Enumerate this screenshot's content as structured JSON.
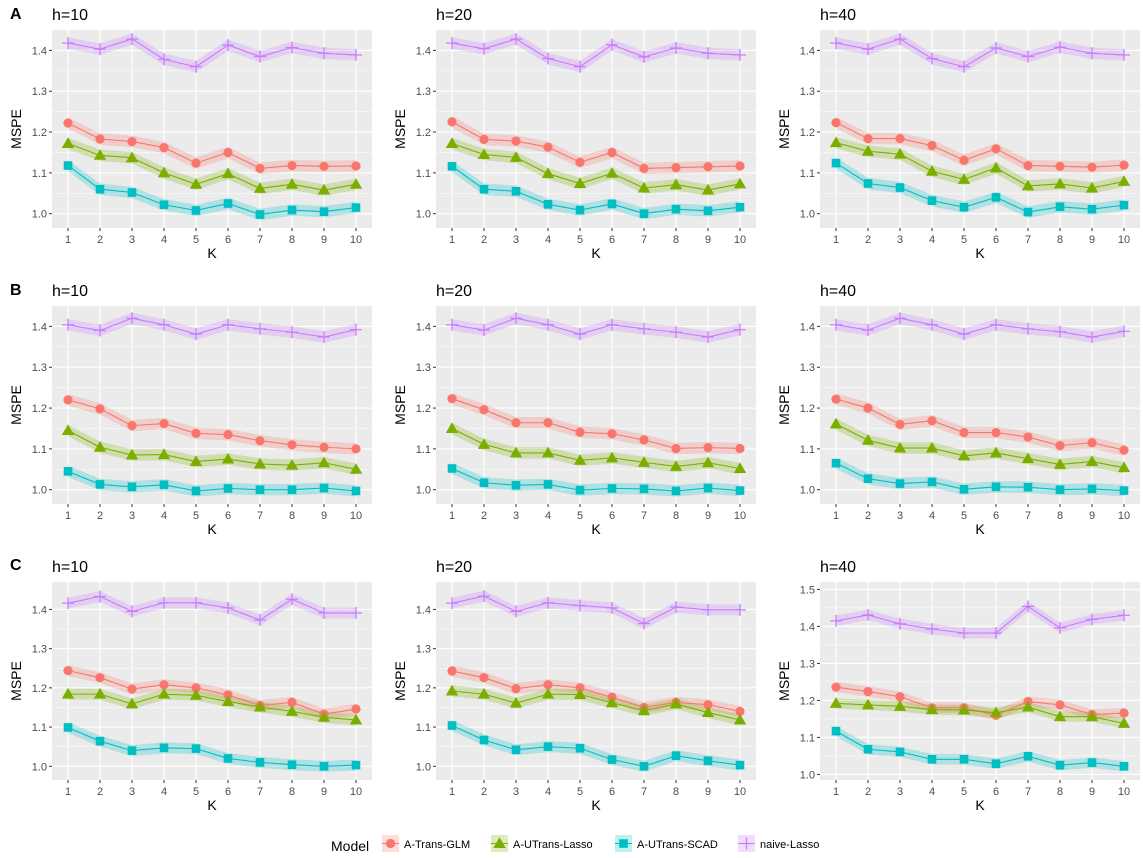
{
  "legend": {
    "title": "Model",
    "entries": [
      {
        "name": "A-Trans-GLM",
        "color": "#F8766D",
        "shape": "circle"
      },
      {
        "name": "A-UTrans-Lasso",
        "color": "#7CAE00",
        "shape": "triangle"
      },
      {
        "name": "A-UTrans-SCAD",
        "color": "#00BFC4",
        "shape": "square"
      },
      {
        "name": "naive-Lasso",
        "color": "#C77CFF",
        "shape": "plus"
      }
    ]
  },
  "row_labels": [
    "A",
    "B",
    "C"
  ],
  "colors": {
    "panel_bg": "#EBEBEB",
    "grid": "#FFFFFF"
  },
  "chart_data": [
    {
      "type": "line",
      "row": "A",
      "title": "h=10",
      "xlabel": "K",
      "ylabel": "MSPE",
      "x": [
        1,
        2,
        3,
        4,
        5,
        6,
        7,
        8,
        9,
        10
      ],
      "ylim": [
        0.965,
        1.45
      ],
      "yticks": [
        1.0,
        1.1,
        1.2,
        1.3,
        1.4
      ],
      "series": [
        {
          "name": "A-Trans-GLM",
          "values": [
            1.222,
            1.183,
            1.177,
            1.162,
            1.124,
            1.15,
            1.111,
            1.118,
            1.116,
            1.117
          ]
        },
        {
          "name": "A-UTrans-Lasso",
          "values": [
            1.172,
            1.143,
            1.137,
            1.1,
            1.072,
            1.098,
            1.062,
            1.072,
            1.058,
            1.072
          ]
        },
        {
          "name": "A-UTrans-SCAD",
          "values": [
            1.118,
            1.06,
            1.052,
            1.022,
            1.008,
            1.025,
            0.998,
            1.009,
            1.005,
            1.015
          ]
        },
        {
          "name": "naive-Lasso",
          "values": [
            1.418,
            1.403,
            1.428,
            1.378,
            1.36,
            1.413,
            1.385,
            1.407,
            1.393,
            1.389
          ]
        }
      ]
    },
    {
      "type": "line",
      "row": "A",
      "title": "h=20",
      "xlabel": "K",
      "ylabel": "MSPE",
      "x": [
        1,
        2,
        3,
        4,
        5,
        6,
        7,
        8,
        9,
        10
      ],
      "ylim": [
        0.965,
        1.45
      ],
      "yticks": [
        1.0,
        1.1,
        1.2,
        1.3,
        1.4
      ],
      "series": [
        {
          "name": "A-Trans-GLM",
          "values": [
            1.225,
            1.182,
            1.178,
            1.163,
            1.126,
            1.15,
            1.111,
            1.113,
            1.115,
            1.117
          ]
        },
        {
          "name": "A-UTrans-Lasso",
          "values": [
            1.172,
            1.145,
            1.138,
            1.098,
            1.074,
            1.099,
            1.063,
            1.071,
            1.058,
            1.073
          ]
        },
        {
          "name": "A-UTrans-SCAD",
          "values": [
            1.116,
            1.06,
            1.055,
            1.023,
            1.009,
            1.024,
            1.0,
            1.011,
            1.007,
            1.016
          ]
        },
        {
          "name": "naive-Lasso",
          "values": [
            1.418,
            1.404,
            1.428,
            1.38,
            1.36,
            1.414,
            1.384,
            1.406,
            1.393,
            1.389
          ]
        }
      ]
    },
    {
      "type": "line",
      "row": "A",
      "title": "h=40",
      "xlabel": "K",
      "ylabel": "MSPE",
      "x": [
        1,
        2,
        3,
        4,
        5,
        6,
        7,
        8,
        9,
        10
      ],
      "ylim": [
        0.965,
        1.45
      ],
      "yticks": [
        1.0,
        1.1,
        1.2,
        1.3,
        1.4
      ],
      "series": [
        {
          "name": "A-Trans-GLM",
          "values": [
            1.223,
            1.184,
            1.184,
            1.167,
            1.131,
            1.159,
            1.118,
            1.116,
            1.114,
            1.119
          ]
        },
        {
          "name": "A-UTrans-Lasso",
          "values": [
            1.174,
            1.153,
            1.146,
            1.104,
            1.084,
            1.112,
            1.068,
            1.073,
            1.063,
            1.079
          ]
        },
        {
          "name": "A-UTrans-SCAD",
          "values": [
            1.124,
            1.074,
            1.064,
            1.032,
            1.016,
            1.04,
            1.004,
            1.017,
            1.011,
            1.021
          ]
        },
        {
          "name": "naive-Lasso",
          "values": [
            1.418,
            1.403,
            1.428,
            1.38,
            1.36,
            1.406,
            1.385,
            1.408,
            1.393,
            1.389
          ]
        }
      ]
    },
    {
      "type": "line",
      "row": "B",
      "title": "h=10",
      "xlabel": "K",
      "ylabel": "MSPE",
      "x": [
        1,
        2,
        3,
        4,
        5,
        6,
        7,
        8,
        9,
        10
      ],
      "ylim": [
        0.965,
        1.45
      ],
      "yticks": [
        1.0,
        1.1,
        1.2,
        1.3,
        1.4
      ],
      "series": [
        {
          "name": "A-Trans-GLM",
          "values": [
            1.22,
            1.198,
            1.157,
            1.162,
            1.138,
            1.135,
            1.12,
            1.11,
            1.104,
            1.1
          ]
        },
        {
          "name": "A-UTrans-Lasso",
          "values": [
            1.145,
            1.104,
            1.085,
            1.086,
            1.069,
            1.075,
            1.063,
            1.06,
            1.066,
            1.05
          ]
        },
        {
          "name": "A-UTrans-SCAD",
          "values": [
            1.045,
            1.013,
            1.007,
            1.012,
            0.997,
            1.003,
            1.0,
            1.0,
            1.004,
            0.997
          ]
        },
        {
          "name": "naive-Lasso",
          "values": [
            1.404,
            1.39,
            1.42,
            1.404,
            1.381,
            1.404,
            1.394,
            1.386,
            1.374,
            1.392
          ]
        }
      ]
    },
    {
      "type": "line",
      "row": "B",
      "title": "h=20",
      "xlabel": "K",
      "ylabel": "MSPE",
      "x": [
        1,
        2,
        3,
        4,
        5,
        6,
        7,
        8,
        9,
        10
      ],
      "ylim": [
        0.965,
        1.45
      ],
      "yticks": [
        1.0,
        1.1,
        1.2,
        1.3,
        1.4
      ],
      "series": [
        {
          "name": "A-Trans-GLM",
          "values": [
            1.223,
            1.196,
            1.164,
            1.164,
            1.141,
            1.137,
            1.122,
            1.101,
            1.103,
            1.101
          ]
        },
        {
          "name": "A-UTrans-Lasso",
          "values": [
            1.15,
            1.111,
            1.09,
            1.09,
            1.072,
            1.078,
            1.067,
            1.057,
            1.066,
            1.052
          ]
        },
        {
          "name": "A-UTrans-SCAD",
          "values": [
            1.052,
            1.017,
            1.011,
            1.013,
            0.999,
            1.003,
            1.002,
            0.997,
            1.004,
            0.998
          ]
        },
        {
          "name": "naive-Lasso",
          "values": [
            1.404,
            1.391,
            1.42,
            1.404,
            1.381,
            1.404,
            1.394,
            1.386,
            1.374,
            1.392
          ]
        }
      ]
    },
    {
      "type": "line",
      "row": "B",
      "title": "h=40",
      "xlabel": "K",
      "ylabel": "MSPE",
      "x": [
        1,
        2,
        3,
        4,
        5,
        6,
        7,
        8,
        9,
        10
      ],
      "ylim": [
        0.965,
        1.45
      ],
      "yticks": [
        1.0,
        1.1,
        1.2,
        1.3,
        1.4
      ],
      "series": [
        {
          "name": "A-Trans-GLM",
          "values": [
            1.222,
            1.2,
            1.16,
            1.169,
            1.14,
            1.14,
            1.129,
            1.108,
            1.115,
            1.097
          ]
        },
        {
          "name": "A-UTrans-Lasso",
          "values": [
            1.161,
            1.121,
            1.102,
            1.102,
            1.083,
            1.09,
            1.076,
            1.062,
            1.069,
            1.054
          ]
        },
        {
          "name": "A-UTrans-SCAD",
          "values": [
            1.065,
            1.027,
            1.015,
            1.019,
            1.001,
            1.007,
            1.006,
            1.0,
            1.002,
            0.998
          ]
        },
        {
          "name": "naive-Lasso",
          "values": [
            1.404,
            1.391,
            1.42,
            1.404,
            1.381,
            1.404,
            1.394,
            1.387,
            1.374,
            1.388
          ]
        }
      ]
    },
    {
      "type": "line",
      "row": "C",
      "title": "h=10",
      "xlabel": "K",
      "ylabel": "MSPE",
      "x": [
        1,
        2,
        3,
        4,
        5,
        6,
        7,
        8,
        9,
        10
      ],
      "ylim": [
        0.965,
        1.47
      ],
      "yticks": [
        1.0,
        1.1,
        1.2,
        1.3,
        1.4
      ],
      "series": [
        {
          "name": "A-Trans-GLM",
          "values": [
            1.244,
            1.226,
            1.197,
            1.208,
            1.2,
            1.182,
            1.155,
            1.163,
            1.133,
            1.146
          ]
        },
        {
          "name": "A-UTrans-Lasso",
          "values": [
            1.184,
            1.184,
            1.159,
            1.184,
            1.181,
            1.165,
            1.151,
            1.14,
            1.125,
            1.118
          ]
        },
        {
          "name": "A-UTrans-SCAD",
          "values": [
            1.099,
            1.064,
            1.04,
            1.047,
            1.045,
            1.02,
            1.01,
            1.004,
            1.0,
            1.003
          ]
        },
        {
          "name": "naive-Lasso",
          "values": [
            1.416,
            1.433,
            1.395,
            1.417,
            1.417,
            1.404,
            1.373,
            1.426,
            1.391,
            1.391
          ]
        }
      ]
    },
    {
      "type": "line",
      "row": "C",
      "title": "h=20",
      "xlabel": "K",
      "ylabel": "MSPE",
      "x": [
        1,
        2,
        3,
        4,
        5,
        6,
        7,
        8,
        9,
        10
      ],
      "ylim": [
        0.965,
        1.47
      ],
      "yticks": [
        1.0,
        1.1,
        1.2,
        1.3,
        1.4
      ],
      "series": [
        {
          "name": "A-Trans-GLM",
          "values": [
            1.243,
            1.226,
            1.198,
            1.208,
            1.2,
            1.176,
            1.15,
            1.163,
            1.157,
            1.14
          ]
        },
        {
          "name": "A-UTrans-Lasso",
          "values": [
            1.192,
            1.184,
            1.161,
            1.184,
            1.183,
            1.162,
            1.142,
            1.159,
            1.137,
            1.118
          ]
        },
        {
          "name": "A-UTrans-SCAD",
          "values": [
            1.104,
            1.067,
            1.042,
            1.05,
            1.046,
            1.017,
            1.0,
            1.027,
            1.014,
            1.003
          ]
        },
        {
          "name": "naive-Lasso",
          "values": [
            1.416,
            1.434,
            1.395,
            1.417,
            1.41,
            1.404,
            1.364,
            1.406,
            1.399,
            1.399
          ]
        }
      ]
    },
    {
      "type": "line",
      "row": "C",
      "title": "h=40",
      "xlabel": "K",
      "ylabel": "MSPE",
      "x": [
        1,
        2,
        3,
        4,
        5,
        6,
        7,
        8,
        9,
        10
      ],
      "ylim": [
        0.985,
        1.52
      ],
      "yticks": [
        1.0,
        1.1,
        1.2,
        1.3,
        1.4,
        1.5
      ],
      "series": [
        {
          "name": "A-Trans-GLM",
          "values": [
            1.236,
            1.224,
            1.21,
            1.18,
            1.18,
            1.16,
            1.197,
            1.188,
            1.162,
            1.166
          ]
        },
        {
          "name": "A-UTrans-Lasso",
          "values": [
            1.192,
            1.188,
            1.184,
            1.175,
            1.174,
            1.167,
            1.182,
            1.156,
            1.156,
            1.138
          ]
        },
        {
          "name": "A-UTrans-SCAD",
          "values": [
            1.117,
            1.068,
            1.061,
            1.041,
            1.041,
            1.029,
            1.049,
            1.025,
            1.032,
            1.022
          ]
        },
        {
          "name": "naive-Lasso",
          "values": [
            1.415,
            1.431,
            1.407,
            1.393,
            1.382,
            1.382,
            1.454,
            1.396,
            1.419,
            1.43
          ]
        }
      ]
    }
  ]
}
